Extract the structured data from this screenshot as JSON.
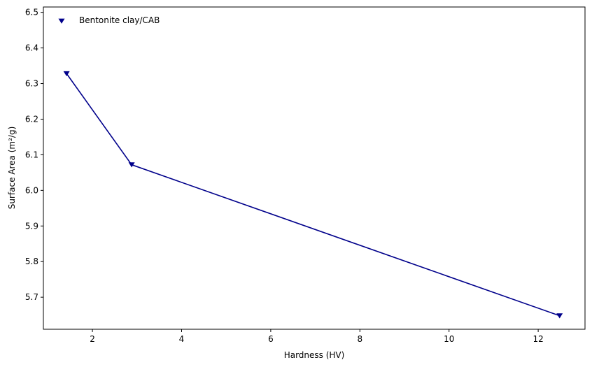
{
  "chart_data": {
    "type": "line",
    "xlabel": "Hardness (HV)",
    "ylabel": "Surface Area (m²/g)",
    "xlim": [
      0.9,
      13.05
    ],
    "ylim": [
      5.61,
      6.515
    ],
    "xticks": [
      2,
      4,
      6,
      8,
      10,
      12
    ],
    "yticks": [
      5.7,
      5.8,
      5.9,
      6.0,
      6.1,
      6.2,
      6.3,
      6.4,
      6.5
    ],
    "xtick_labels": [
      "2",
      "4",
      "6",
      "8",
      "10",
      "12"
    ],
    "ytick_labels": [
      "5.7",
      "5.8",
      "5.9",
      "6.0",
      "6.1",
      "6.2",
      "6.3",
      "6.4",
      "6.5"
    ],
    "grid": false,
    "legend_position": "top-left",
    "series": [
      {
        "name": "Bentonite clay/CAB",
        "color": "#00008b",
        "marker": "triangle-down",
        "x": [
          1.42,
          2.88,
          12.48
        ],
        "y": [
          6.328,
          6.072,
          5.648
        ]
      }
    ]
  }
}
